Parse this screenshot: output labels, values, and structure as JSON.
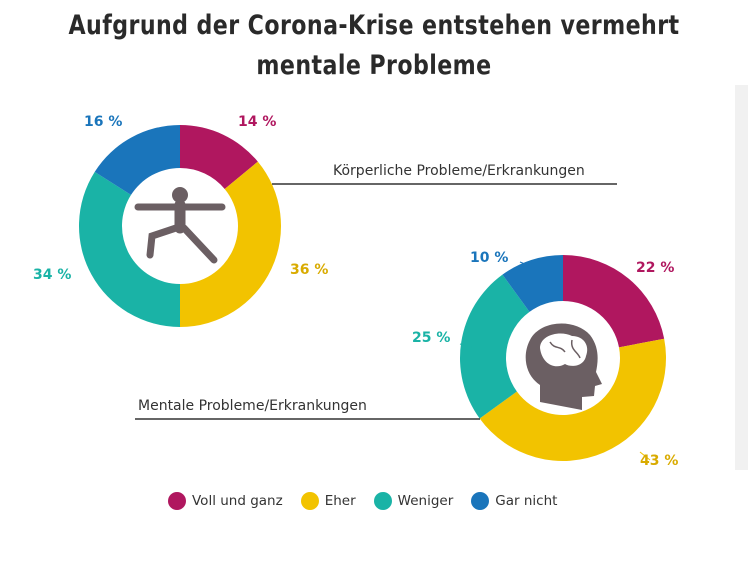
{
  "chart_data": [
    {
      "type": "pie",
      "title": "Körperliche Probleme/Erkrankungen",
      "categories": [
        "Voll und ganz",
        "Eher",
        "Weniger",
        "Gar nicht"
      ],
      "values": [
        14,
        36,
        34,
        16
      ],
      "labels": [
        "14 %",
        "36 %",
        "34 %",
        "16 %"
      ],
      "icon": "person-stretching-icon"
    },
    {
      "type": "pie",
      "title": "Mentale Probleme/Erkrankungen",
      "categories": [
        "Voll und ganz",
        "Eher",
        "Weniger",
        "Gar nicht"
      ],
      "values": [
        22,
        43,
        25,
        10
      ],
      "labels": [
        "22 %",
        "43 %",
        "25 %",
        "10 %"
      ],
      "icon": "brain-head-icon"
    }
  ],
  "title": "Aufgrund der Corona-Krise entstehen vermehrt mentale Probleme",
  "legend": [
    {
      "label": "Voll und ganz",
      "color": "#b0175f"
    },
    {
      "label": "Eher",
      "color": "#f2c300"
    },
    {
      "label": "Weniger",
      "color": "#1ab3a6"
    },
    {
      "label": "Gar nicht",
      "color": "#1a75bb"
    }
  ]
}
